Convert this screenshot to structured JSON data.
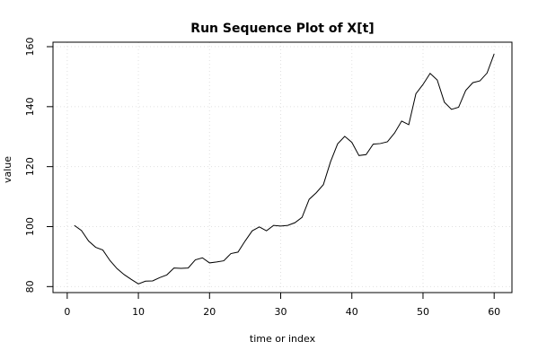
{
  "chart_data": {
    "type": "line",
    "title": "Run Sequence Plot of X[t]",
    "xlabel": "time or index",
    "ylabel": "value",
    "xlim": [
      -2,
      62.5
    ],
    "ylim": [
      78,
      161.5
    ],
    "x_ticks": [
      0,
      10,
      20,
      30,
      40,
      50,
      60
    ],
    "y_ticks": [
      80,
      100,
      120,
      140,
      160
    ],
    "grid": true,
    "line_color": "#000000",
    "grid_color": "#e0e0e0",
    "series": [
      {
        "x": [
          1,
          2,
          3,
          4,
          5,
          6,
          7,
          8,
          9,
          10,
          11,
          12,
          13,
          14,
          15,
          16,
          17,
          18,
          19,
          20,
          21,
          22,
          23,
          24,
          25,
          26,
          27,
          28,
          29,
          30,
          31,
          32,
          33,
          34,
          35,
          36,
          37,
          38,
          39,
          40,
          41,
          42,
          43,
          44,
          45,
          46,
          47,
          48,
          49,
          50,
          51,
          52,
          53,
          54,
          55,
          56,
          57,
          58,
          59,
          60
        ],
        "values": [
          100.4,
          98.7,
          95.2,
          93.1,
          92.2,
          88.7,
          86.0,
          84.0,
          82.4,
          80.9,
          81.8,
          81.9,
          83.0,
          83.9,
          86.2,
          86.1,
          86.2,
          88.9,
          89.6,
          87.9,
          88.2,
          88.6,
          91.0,
          91.5,
          95.2,
          98.6,
          99.9,
          98.6,
          100.4,
          100.2,
          100.4,
          101.3,
          103.1,
          109.1,
          111.3,
          114.0,
          121.6,
          127.6,
          130.1,
          128.1,
          123.7,
          124.0,
          127.5,
          127.7,
          128.3,
          131.2,
          135.2,
          134.0,
          144.3,
          147.4,
          151.1,
          148.9,
          141.5,
          139.1,
          139.8,
          145.4,
          148.0,
          148.6,
          151.2,
          157.6
        ]
      }
    ]
  }
}
